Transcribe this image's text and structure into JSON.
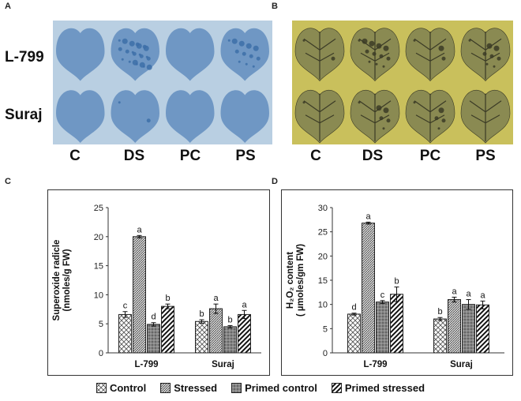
{
  "panels": {
    "a": "A",
    "b": "B",
    "c": "C",
    "d": "D"
  },
  "photo_rows": [
    "L-799",
    "Suraj"
  ],
  "photo_cols": [
    "C",
    "DS",
    "PC",
    "PS"
  ],
  "colors": {
    "nbt_bg": "#b9cfe2",
    "nbt_leaf": "#6f97c4",
    "nbt_stain": "#3d6fa8",
    "dab_bg": "#c9c05c",
    "dab_leaf": "#8a8a52",
    "dab_stain": "#3b3b26",
    "bar_stroke": "#222222"
  },
  "legend": [
    "Control",
    "Stressed",
    "Primed control",
    "Primed stressed"
  ],
  "chart_data": [
    {
      "type": "bar",
      "panel": "C",
      "categories": [
        "L-799",
        "Suraj"
      ],
      "ylabel": "Superoxide radicle (nmoles/g FW)",
      "ylabel_lines": [
        "Superoxide radicle",
        "(nmoles/g FW)"
      ],
      "ylim": [
        0,
        25
      ],
      "yticks": [
        "0",
        "5",
        "10",
        "15",
        "20",
        "25"
      ],
      "series": [
        {
          "name": "Control",
          "values": [
            6.6,
            5.4
          ],
          "errors": [
            0.5,
            0.3
          ],
          "letters": [
            "c",
            "b"
          ]
        },
        {
          "name": "Stressed",
          "values": [
            20.0,
            7.6
          ],
          "errors": [
            0.2,
            0.8
          ],
          "letters": [
            "a",
            "a"
          ]
        },
        {
          "name": "Primed control",
          "values": [
            4.9,
            4.5
          ],
          "errors": [
            0.3,
            0.2
          ],
          "letters": [
            "d",
            "b"
          ]
        },
        {
          "name": "Primed stressed",
          "values": [
            8.0,
            6.6
          ],
          "errors": [
            0.4,
            0.7
          ],
          "letters": [
            "b",
            "a"
          ]
        }
      ]
    },
    {
      "type": "bar",
      "panel": "D",
      "categories": [
        "L-799",
        "Suraj"
      ],
      "ylabel": "H2O2 content ( µmoles/gm FW)",
      "ylabel_lines": [
        "H₂O₂ content",
        "( µmoles/gm FW)"
      ],
      "ylim": [
        0,
        30
      ],
      "yticks": [
        "0",
        "5",
        "10",
        "15",
        "20",
        "25",
        "30"
      ],
      "series": [
        {
          "name": "Control",
          "values": [
            8.0,
            7.0
          ],
          "errors": [
            0.2,
            0.3
          ],
          "letters": [
            "d",
            "b"
          ]
        },
        {
          "name": "Stressed",
          "values": [
            26.8,
            11.0
          ],
          "errors": [
            0.2,
            0.5
          ],
          "letters": [
            "a",
            "a"
          ]
        },
        {
          "name": "Primed control",
          "values": [
            10.5,
            10.0
          ],
          "errors": [
            0.3,
            1.0
          ],
          "letters": [
            "c",
            "a"
          ]
        },
        {
          "name": "Primed stressed",
          "values": [
            12.1,
            9.9
          ],
          "errors": [
            1.5,
            0.8
          ],
          "letters": [
            "b",
            "a"
          ]
        }
      ]
    }
  ]
}
